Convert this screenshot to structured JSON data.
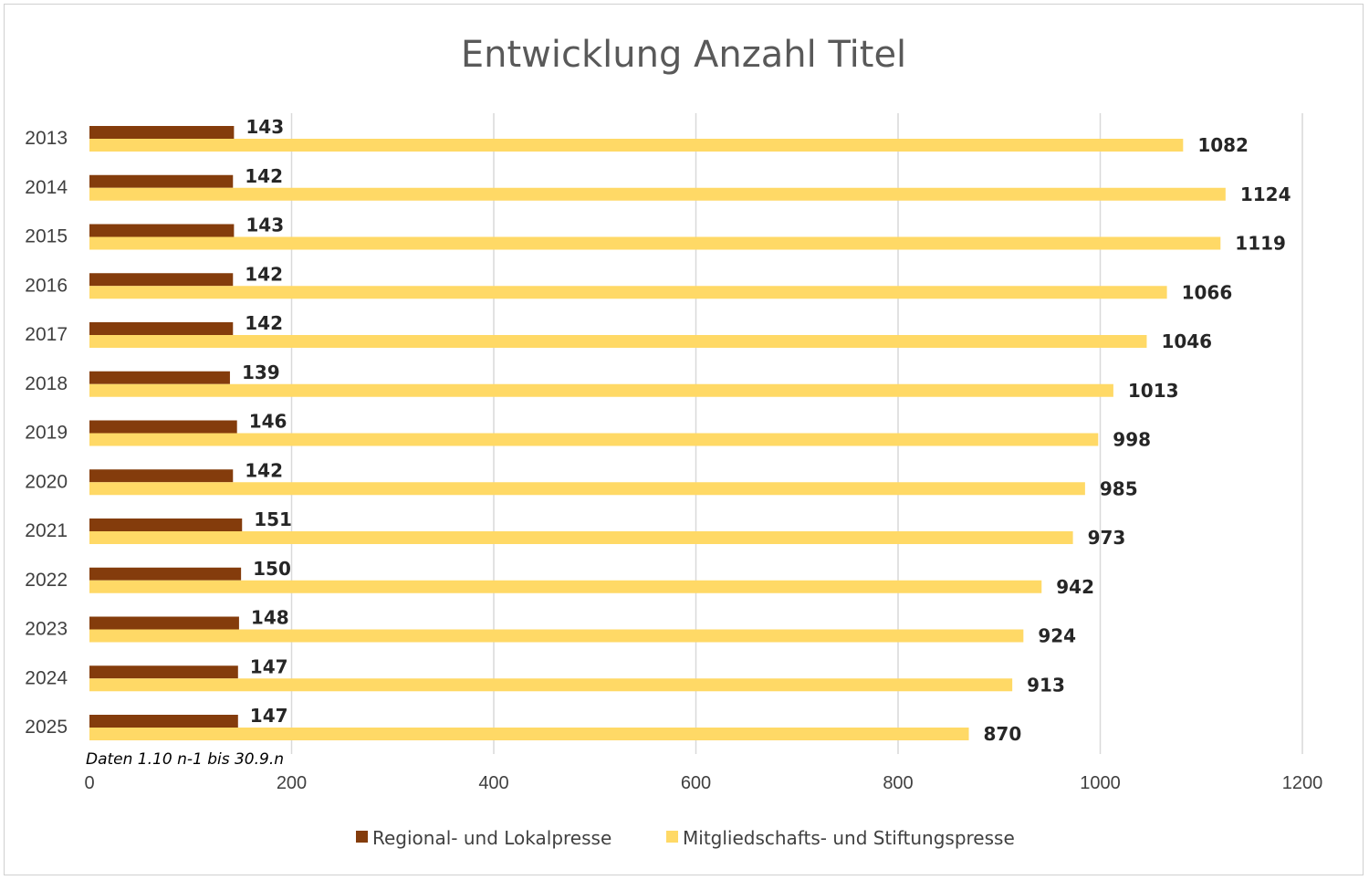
{
  "chart_data": {
    "type": "bar",
    "orientation": "horizontal",
    "title": "Entwicklung Anzahl Titel",
    "categories": [
      "2013",
      "2014",
      "2015",
      "2016",
      "2017",
      "2018",
      "2019",
      "2020",
      "2021",
      "2022",
      "2023",
      "2024",
      "2025"
    ],
    "series": [
      {
        "name": "Regional- und Lokalpresse",
        "color": "#843C0C",
        "values": [
          143,
          142,
          143,
          142,
          142,
          139,
          146,
          142,
          151,
          150,
          148,
          147,
          147
        ]
      },
      {
        "name": "Mitgliedschafts- und Stiftungspresse",
        "color": "#FFD966",
        "values": [
          1082,
          1124,
          1119,
          1066,
          1046,
          1013,
          998,
          985,
          973,
          942,
          924,
          913,
          870
        ]
      }
    ],
    "xlim": [
      0,
      1200
    ],
    "xticks": [
      "0",
      "200",
      "400",
      "600",
      "800",
      "1000",
      "1200"
    ],
    "grid": true,
    "legend": "bottom",
    "annotation": "Daten 1.10 n-1 bis 30.9.n"
  }
}
